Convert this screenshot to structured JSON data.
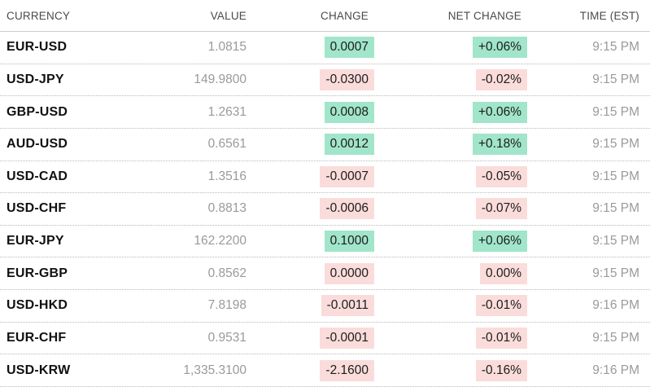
{
  "chart_data": {
    "type": "table",
    "columns": [
      "CURRENCY",
      "VALUE",
      "CHANGE",
      "NET CHANGE",
      "TIME (EST)"
    ],
    "rows": [
      {
        "currency": "EUR-USD",
        "value": "1.0815",
        "change": "0.0007",
        "change_dir": "up",
        "net_change": "+0.06%",
        "net_dir": "up",
        "time": "9:15 PM"
      },
      {
        "currency": "USD-JPY",
        "value": "149.9800",
        "change": "-0.0300",
        "change_dir": "down",
        "net_change": "-0.02%",
        "net_dir": "down",
        "time": "9:15 PM"
      },
      {
        "currency": "GBP-USD",
        "value": "1.2631",
        "change": "0.0008",
        "change_dir": "up",
        "net_change": "+0.06%",
        "net_dir": "up",
        "time": "9:15 PM"
      },
      {
        "currency": "AUD-USD",
        "value": "0.6561",
        "change": "0.0012",
        "change_dir": "up",
        "net_change": "+0.18%",
        "net_dir": "up",
        "time": "9:15 PM"
      },
      {
        "currency": "USD-CAD",
        "value": "1.3516",
        "change": "-0.0007",
        "change_dir": "down",
        "net_change": "-0.05%",
        "net_dir": "down",
        "time": "9:15 PM"
      },
      {
        "currency": "USD-CHF",
        "value": "0.8813",
        "change": "-0.0006",
        "change_dir": "down",
        "net_change": "-0.07%",
        "net_dir": "down",
        "time": "9:15 PM"
      },
      {
        "currency": "EUR-JPY",
        "value": "162.2200",
        "change": "0.1000",
        "change_dir": "up",
        "net_change": "+0.06%",
        "net_dir": "up",
        "time": "9:15 PM"
      },
      {
        "currency": "EUR-GBP",
        "value": "0.8562",
        "change": "0.0000",
        "change_dir": "down",
        "net_change": "0.00%",
        "net_dir": "down",
        "time": "9:15 PM"
      },
      {
        "currency": "USD-HKD",
        "value": "7.8198",
        "change": "-0.0011",
        "change_dir": "down",
        "net_change": "-0.01%",
        "net_dir": "down",
        "time": "9:16 PM"
      },
      {
        "currency": "EUR-CHF",
        "value": "0.9531",
        "change": "-0.0001",
        "change_dir": "down",
        "net_change": "-0.01%",
        "net_dir": "down",
        "time": "9:15 PM"
      },
      {
        "currency": "USD-KRW",
        "value": "1,335.3100",
        "change": "-2.1600",
        "change_dir": "down",
        "net_change": "-0.16%",
        "net_dir": "down",
        "time": "9:16 PM"
      }
    ]
  },
  "colors": {
    "positive_bg": "#a1e5cb",
    "negative_bg": "#fadcdb",
    "pair_text": "#111111",
    "muted_text": "#9a9a9a",
    "header_text": "#4a4a4a"
  }
}
